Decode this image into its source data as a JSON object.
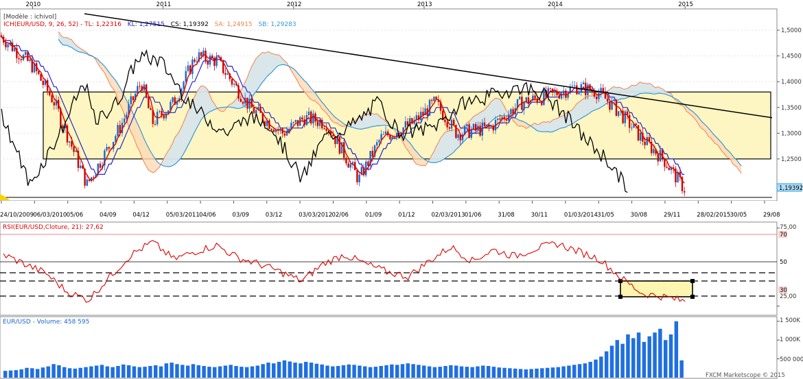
{
  "years": [
    "2010",
    "2011",
    "2012",
    "2013",
    "2014",
    "2015"
  ],
  "price_panel": {
    "model_label": "[Modèle : ichivol]",
    "legend": [
      {
        "text": "ICH(EUR/USD, 9, 26, 52) - TL: 1,22316",
        "color": "#dd0000"
      },
      {
        "text": "KL: 1,27515",
        "color": "#2222cc"
      },
      {
        "text": "CS: 1,19392",
        "color": "#000000"
      },
      {
        "text": "SA: 1,24915",
        "color": "#f08050"
      },
      {
        "text": "SB: 1,29283",
        "color": "#3399dd"
      }
    ],
    "y_ticks": [
      "1,5000",
      "1,4500",
      "1,4000",
      "1,3500",
      "1,3000",
      "1,2500"
    ],
    "last_price": "1,19392",
    "date_labels": [
      "24/10/2009",
      "06/03/2010",
      "05/06",
      "04/09",
      "04/12",
      "05/03/2011",
      "04/06",
      "03/09",
      "03/12",
      "03/03/2012",
      "02/06",
      "01/09",
      "01/12",
      "02/03/2013",
      "01/06",
      "31/08",
      "30/11",
      "01/03/2014",
      "31/05",
      "30/08",
      "29/11",
      "28/02/2015",
      "30/05",
      "29/08"
    ]
  },
  "rsi_panel": {
    "label": "RSI(EUR/USD,Cloture, 21): 27,62",
    "y_ticks": [
      "75,00",
      "70",
      "50",
      "30",
      "25,00"
    ]
  },
  "volume_panel": {
    "label": "EUR/USD - Volume: 458 595",
    "y_ticks": [
      "1 500K",
      "1 000K",
      "500 000"
    ],
    "watermark": "FXCM Marketscope © 2015"
  },
  "chart_data": [
    {
      "type": "line",
      "title": "ICH(EUR/USD, 9, 26, 52)",
      "ylim": [
        1.17,
        1.54
      ],
      "series": [
        {
          "name": "TL",
          "last": 1.22316
        },
        {
          "name": "KL",
          "last": 1.27515
        },
        {
          "name": "CS",
          "last": 1.19392
        },
        {
          "name": "SA",
          "last": 1.24915
        },
        {
          "name": "SB",
          "last": 1.29283
        }
      ],
      "close_approx": [
        {
          "x": "2009-10",
          "y": 1.49
        },
        {
          "x": "2010-01",
          "y": 1.43
        },
        {
          "x": "2010-03",
          "y": 1.36
        },
        {
          "x": "2010-06",
          "y": 1.2
        },
        {
          "x": "2010-09",
          "y": 1.31
        },
        {
          "x": "2010-11",
          "y": 1.4
        },
        {
          "x": "2010-12",
          "y": 1.32
        },
        {
          "x": "2011-02",
          "y": 1.36
        },
        {
          "x": "2011-04",
          "y": 1.45
        },
        {
          "x": "2011-06",
          "y": 1.44
        },
        {
          "x": "2011-09",
          "y": 1.35
        },
        {
          "x": "2011-12",
          "y": 1.3
        },
        {
          "x": "2012-02",
          "y": 1.33
        },
        {
          "x": "2012-04",
          "y": 1.32
        },
        {
          "x": "2012-07",
          "y": 1.21
        },
        {
          "x": "2012-09",
          "y": 1.29
        },
        {
          "x": "2012-12",
          "y": 1.32
        },
        {
          "x": "2013-02",
          "y": 1.36
        },
        {
          "x": "2013-04",
          "y": 1.3
        },
        {
          "x": "2013-07",
          "y": 1.31
        },
        {
          "x": "2013-10",
          "y": 1.36
        },
        {
          "x": "2013-12",
          "y": 1.37
        },
        {
          "x": "2014-03",
          "y": 1.39
        },
        {
          "x": "2014-05",
          "y": 1.38
        },
        {
          "x": "2014-07",
          "y": 1.34
        },
        {
          "x": "2014-09",
          "y": 1.29
        },
        {
          "x": "2014-11",
          "y": 1.25
        },
        {
          "x": "2015-01",
          "y": 1.19
        }
      ],
      "rectangle": {
        "top": 1.38,
        "bottom": 1.25
      },
      "trendline": {
        "from": {
          "x": "2009-10",
          "y": 1.545
        },
        "to": {
          "x": "2015-09",
          "y": 1.33
        }
      }
    },
    {
      "type": "line",
      "title": "RSI(EUR/USD,Cloture, 21)",
      "ylim": [
        20,
        78
      ],
      "levels": [
        70,
        50,
        30
      ],
      "last": 27.62,
      "values": [
        58,
        52,
        46,
        34,
        29,
        44,
        58,
        66,
        55,
        60,
        64,
        56,
        52,
        47,
        41,
        52,
        58,
        52,
        47,
        44,
        54,
        63,
        54,
        61,
        57,
        62,
        65,
        60,
        55,
        43,
        33,
        31,
        28
      ]
    },
    {
      "type": "bar",
      "title": "EUR/USD - Volume",
      "last": 458595,
      "values": [
        180,
        190,
        200,
        220,
        260,
        250,
        230,
        270,
        300,
        360,
        330,
        280,
        250,
        240,
        260,
        280,
        300,
        320,
        340,
        300,
        280,
        310,
        350,
        330,
        300,
        280,
        290,
        310,
        330,
        300,
        380,
        400,
        360,
        340,
        320,
        360,
        330,
        310,
        290,
        280,
        300,
        320,
        340,
        310,
        290,
        280,
        300,
        320,
        360,
        400,
        380,
        420,
        460,
        430,
        400,
        380,
        420,
        400,
        370,
        350,
        320,
        300,
        310,
        330,
        350,
        340,
        320,
        300,
        280,
        290,
        310,
        330,
        350,
        340,
        360,
        380,
        360,
        340,
        320,
        300,
        280,
        290,
        310,
        330,
        320,
        300,
        290,
        280,
        300,
        320,
        310,
        290,
        270,
        260,
        250,
        240,
        230,
        220,
        230,
        240,
        250,
        260,
        270,
        280,
        300,
        320,
        340,
        360,
        380,
        420,
        480,
        560,
        700,
        850,
        1000,
        900,
        1150,
        1050,
        1200,
        950,
        1100,
        1200,
        1300,
        1000,
        1150,
        1500,
        460
      ],
      "ylim": [
        0,
        1550
      ]
    }
  ]
}
